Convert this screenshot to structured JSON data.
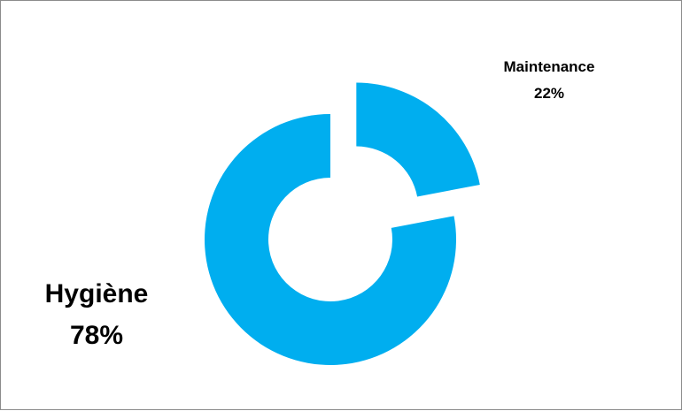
{
  "chart_data": {
    "type": "pie",
    "variant": "exploded-donut",
    "title": "",
    "slices": [
      {
        "label": "Maintenance",
        "value": 22,
        "value_label": "22%",
        "color": "#00aeef",
        "exploded": true
      },
      {
        "label": "Hygiène",
        "value": 78,
        "value_label": "78%",
        "color": "#00aeef",
        "exploded": false
      }
    ],
    "legend": "none",
    "border_color": "#8c8c8c",
    "background": "#ffffff"
  }
}
